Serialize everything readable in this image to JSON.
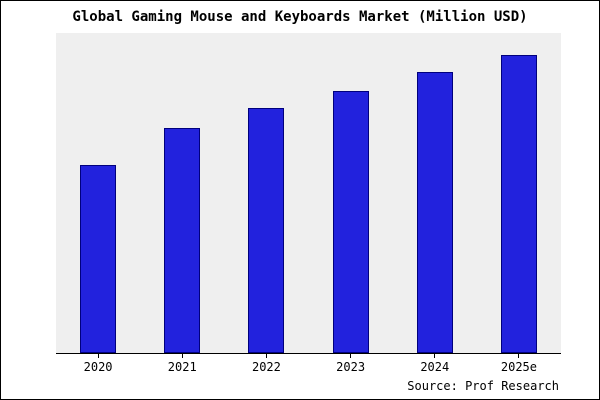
{
  "chart_data": {
    "type": "bar",
    "title": "Global Gaming Mouse and Keyboards Market (Million USD)",
    "categories": [
      "2020",
      "2021",
      "2022",
      "2023",
      "2024",
      "2025e"
    ],
    "values": [
      189,
      226,
      247,
      264,
      283,
      300
    ],
    "xlabel": "",
    "ylabel": "",
    "ylim": [
      0,
      322
    ],
    "grid": false,
    "legend": "none",
    "y_axis_ticks": "none (values estimated from relative bar heights)",
    "plot_background": "#efefef",
    "bar_fill": "#2222dd",
    "bar_border": "#00007d"
  },
  "source": {
    "label": "Source: Prof Research"
  }
}
